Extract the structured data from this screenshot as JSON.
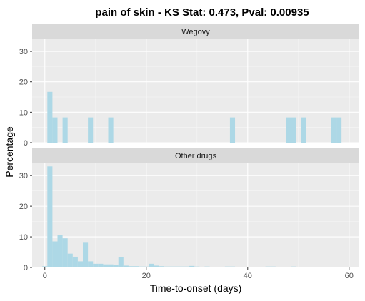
{
  "chart_data": {
    "type": "bar",
    "title": "pain of skin - KS Stat: 0.473, Pval: 0.00935",
    "xlabel": "Time-to-onset (days)",
    "ylabel": "Percentage",
    "xlim": [
      -2.5,
      62
    ],
    "ylim": [
      0,
      34
    ],
    "x_ticks": [
      0,
      20,
      40,
      60
    ],
    "y_ticks": [
      0,
      10,
      20,
      30
    ],
    "bin_width": 1,
    "grid": true,
    "bar_color": "#add8e6",
    "panel_background": "#ebebeb",
    "strip_background": "#d9d9d9",
    "series": [
      {
        "name": "Wegovy",
        "bins": [
          {
            "x": 1,
            "value": 16.7
          },
          {
            "x": 2,
            "value": 8.3
          },
          {
            "x": 4,
            "value": 8.3
          },
          {
            "x": 9,
            "value": 8.3
          },
          {
            "x": 13,
            "value": 8.3
          },
          {
            "x": 37,
            "value": 8.3
          },
          {
            "x": 48,
            "value": 8.3
          },
          {
            "x": 49,
            "value": 8.3
          },
          {
            "x": 51,
            "value": 8.3
          },
          {
            "x": 57,
            "value": 8.3
          },
          {
            "x": 58,
            "value": 8.3
          }
        ]
      },
      {
        "name": "Other drugs",
        "bins": [
          {
            "x": 0,
            "value": 0.4
          },
          {
            "x": 1,
            "value": 33.0
          },
          {
            "x": 2,
            "value": 8.5
          },
          {
            "x": 3,
            "value": 10.5
          },
          {
            "x": 4,
            "value": 9.5
          },
          {
            "x": 5,
            "value": 4.5
          },
          {
            "x": 6,
            "value": 3.5
          },
          {
            "x": 7,
            "value": 2.0
          },
          {
            "x": 8,
            "value": 8.3
          },
          {
            "x": 9,
            "value": 2.0
          },
          {
            "x": 10,
            "value": 1.2
          },
          {
            "x": 11,
            "value": 1.2
          },
          {
            "x": 12,
            "value": 1.0
          },
          {
            "x": 13,
            "value": 1.0
          },
          {
            "x": 14,
            "value": 0.8
          },
          {
            "x": 15,
            "value": 3.4
          },
          {
            "x": 16,
            "value": 0.6
          },
          {
            "x": 17,
            "value": 0.4
          },
          {
            "x": 18,
            "value": 0.4
          },
          {
            "x": 19,
            "value": 0.3
          },
          {
            "x": 20,
            "value": 0.3
          },
          {
            "x": 21,
            "value": 1.2
          },
          {
            "x": 22,
            "value": 0.6
          },
          {
            "x": 23,
            "value": 0.4
          },
          {
            "x": 24,
            "value": 0.3
          },
          {
            "x": 25,
            "value": 0.3
          },
          {
            "x": 26,
            "value": 0.3
          },
          {
            "x": 27,
            "value": 0.3
          },
          {
            "x": 28,
            "value": 0.3
          },
          {
            "x": 29,
            "value": 0.5
          },
          {
            "x": 30,
            "value": 0.3
          },
          {
            "x": 32,
            "value": 0.3
          },
          {
            "x": 36,
            "value": 0.3
          },
          {
            "x": 37,
            "value": 0.3
          },
          {
            "x": 44,
            "value": 0.3
          },
          {
            "x": 45,
            "value": 0.3
          },
          {
            "x": 49,
            "value": 0.3
          }
        ]
      }
    ]
  }
}
